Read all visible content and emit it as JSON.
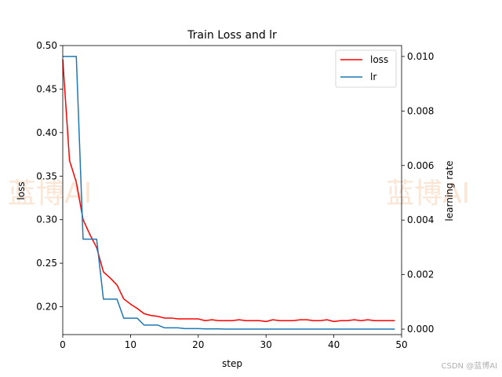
{
  "chart_data": {
    "type": "line",
    "title": "Train Loss and lr",
    "xlabel": "step",
    "ylabel_left": "loss",
    "ylabel_right": "learning rate",
    "xlim": [
      0,
      50
    ],
    "ylim_left": [
      0.168,
      0.5
    ],
    "ylim_right": [
      -0.0002,
      0.0104
    ],
    "xticks": [
      0,
      10,
      20,
      30,
      40,
      50
    ],
    "yticks_left": [
      0.2,
      0.25,
      0.3,
      0.35,
      0.4,
      0.45,
      0.5
    ],
    "yticks_left_labels": [
      "0.20",
      "0.25",
      "0.30",
      "0.35",
      "0.40",
      "0.45",
      "0.50"
    ],
    "yticks_right": [
      0.0,
      0.002,
      0.004,
      0.006,
      0.008,
      0.01
    ],
    "yticks_right_labels": [
      "0.000",
      "0.002",
      "0.004",
      "0.006",
      "0.008",
      "0.010"
    ],
    "legend_position": "top-right",
    "series": [
      {
        "name": "loss",
        "axis": "left",
        "color": "#ff0000",
        "x": [
          0,
          1,
          2,
          3,
          4,
          5,
          6,
          7,
          8,
          9,
          10,
          11,
          12,
          13,
          14,
          15,
          16,
          17,
          18,
          19,
          20,
          21,
          22,
          23,
          24,
          25,
          26,
          27,
          28,
          29,
          30,
          31,
          32,
          33,
          34,
          35,
          36,
          37,
          38,
          39,
          40,
          41,
          42,
          43,
          44,
          45,
          46,
          47,
          48,
          49
        ],
        "values": [
          0.484,
          0.368,
          0.343,
          0.3,
          0.283,
          0.268,
          0.24,
          0.233,
          0.225,
          0.209,
          0.203,
          0.198,
          0.192,
          0.19,
          0.189,
          0.187,
          0.187,
          0.186,
          0.186,
          0.186,
          0.186,
          0.184,
          0.185,
          0.184,
          0.184,
          0.184,
          0.185,
          0.184,
          0.184,
          0.184,
          0.183,
          0.185,
          0.184,
          0.184,
          0.184,
          0.185,
          0.185,
          0.184,
          0.184,
          0.185,
          0.183,
          0.184,
          0.184,
          0.185,
          0.184,
          0.185,
          0.184,
          0.184,
          0.184,
          0.184
        ]
      },
      {
        "name": "lr",
        "axis": "right",
        "color": "#1f77b4",
        "x": [
          0,
          1,
          2,
          3,
          4,
          5,
          6,
          7,
          8,
          9,
          10,
          11,
          12,
          13,
          14,
          15,
          16,
          17,
          18,
          19,
          20,
          21,
          22,
          23,
          24,
          25,
          26,
          27,
          28,
          29,
          30,
          31,
          32,
          33,
          34,
          35,
          36,
          37,
          38,
          39,
          40,
          41,
          42,
          43,
          44,
          45,
          46,
          47,
          48,
          49
        ],
        "values": [
          0.01,
          0.01,
          0.01,
          0.0033,
          0.0033,
          0.0033,
          0.0011,
          0.0011,
          0.0011,
          0.0004,
          0.0004,
          0.0004,
          0.00015,
          0.00015,
          0.00015,
          5e-05,
          5e-05,
          5e-05,
          2e-05,
          2e-05,
          2e-05,
          1e-05,
          1e-05,
          1e-05,
          0.0,
          0.0,
          0.0,
          0.0,
          0.0,
          0.0,
          0.0,
          0.0,
          0.0,
          0.0,
          0.0,
          0.0,
          0.0,
          0.0,
          0.0,
          0.0,
          0.0,
          0.0,
          0.0,
          0.0,
          0.0,
          0.0,
          0.0,
          0.0,
          0.0,
          0.0
        ]
      }
    ]
  },
  "watermarks": {
    "left": "蓝博AI",
    "right": "蓝博AI"
  },
  "credit": "CSDN @蓝博AI"
}
